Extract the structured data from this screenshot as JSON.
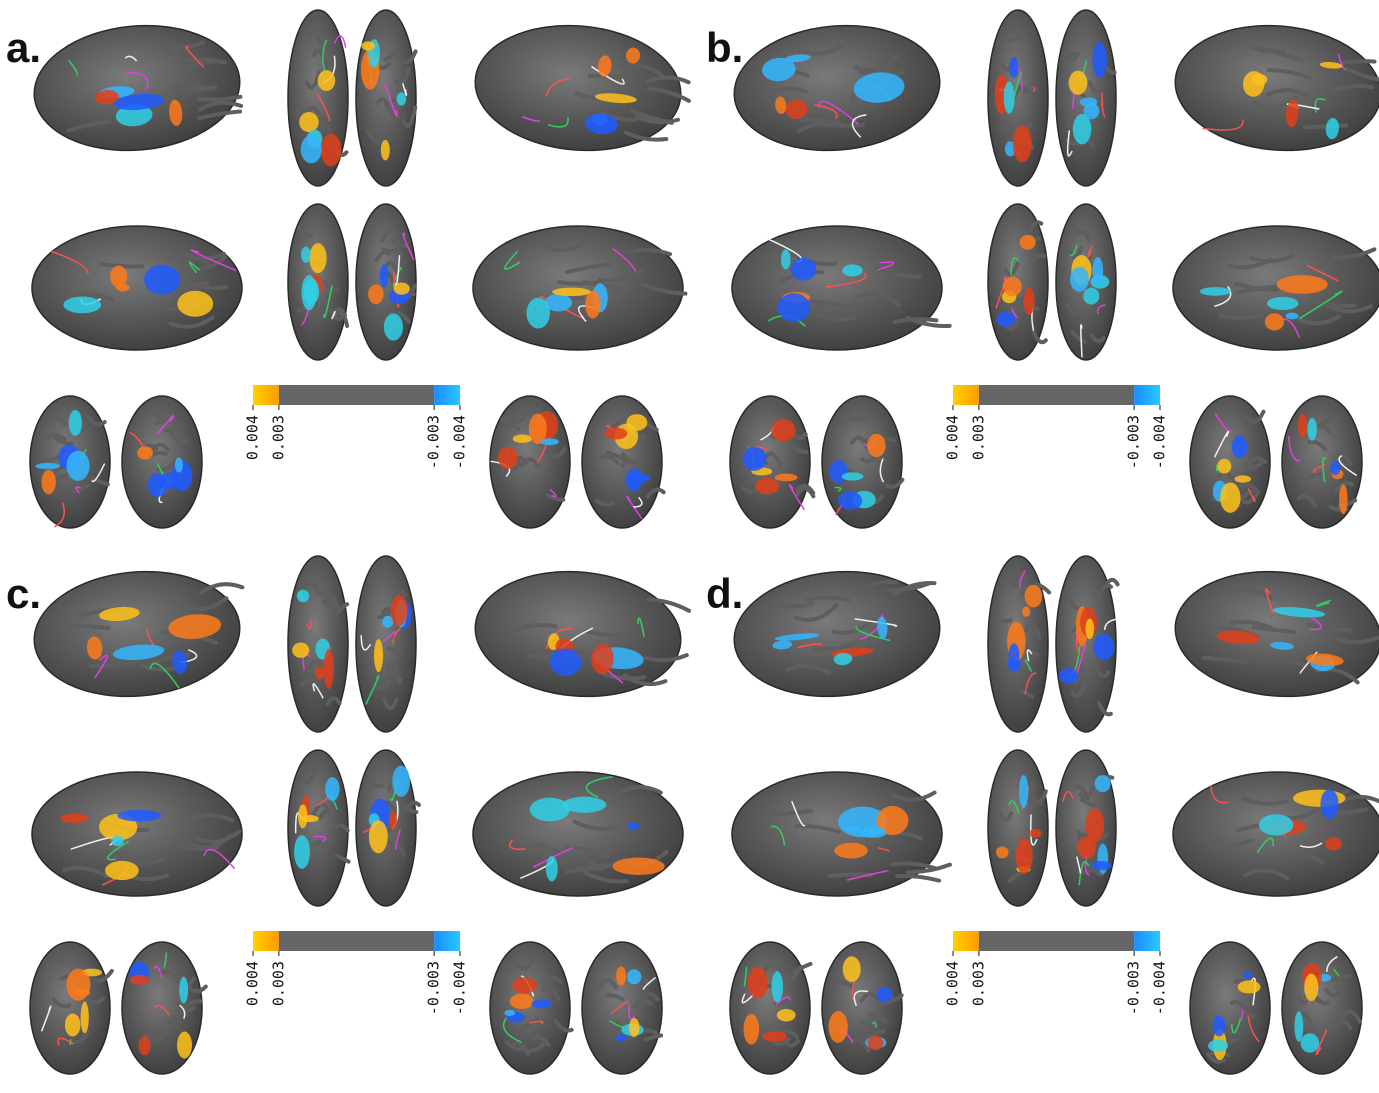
{
  "panels": [
    {
      "label": "a.",
      "colorbar": {
        "ticks": [
          0.004,
          0.003,
          -0.003,
          -0.004
        ]
      }
    },
    {
      "label": "b.",
      "colorbar": {
        "ticks": [
          0.004,
          0.003,
          -0.003,
          -0.004
        ]
      }
    },
    {
      "label": "c.",
      "colorbar": {
        "ticks": [
          0.004,
          0.003,
          -0.003,
          -0.004
        ]
      }
    },
    {
      "label": "d.",
      "colorbar": {
        "ticks": [
          0.004,
          0.003,
          -0.003,
          -0.004
        ]
      }
    }
  ]
}
